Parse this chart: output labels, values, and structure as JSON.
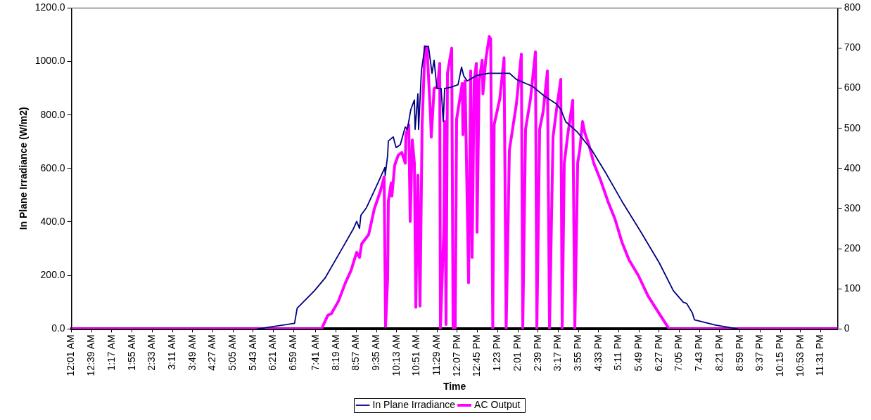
{
  "chart_data": {
    "type": "line",
    "xlabel": "Time",
    "ylabel": "In Plane Irradiance (W/m2)",
    "xlim": [
      0.017,
      24.05
    ],
    "xticks": [
      {
        "value": 0.017,
        "label": "12:01 AM"
      },
      {
        "value": 0.65,
        "label": "12:39 AM"
      },
      {
        "value": 1.283,
        "label": "1:17 AM"
      },
      {
        "value": 1.917,
        "label": "1:55 AM"
      },
      {
        "value": 2.55,
        "label": "2:33 AM"
      },
      {
        "value": 3.183,
        "label": "3:11 AM"
      },
      {
        "value": 3.817,
        "label": "3:49 AM"
      },
      {
        "value": 4.45,
        "label": "4:27 AM"
      },
      {
        "value": 5.083,
        "label": "5:05 AM"
      },
      {
        "value": 5.717,
        "label": "5:43 AM"
      },
      {
        "value": 6.35,
        "label": "6:21 AM"
      },
      {
        "value": 6.983,
        "label": "6:59 AM"
      },
      {
        "value": 7.683,
        "label": "7:41 AM"
      },
      {
        "value": 8.317,
        "label": "8:19 AM"
      },
      {
        "value": 8.95,
        "label": "8:57 AM"
      },
      {
        "value": 9.583,
        "label": "9:35 AM"
      },
      {
        "value": 10.217,
        "label": "10:13 AM"
      },
      {
        "value": 10.85,
        "label": "10:51 AM"
      },
      {
        "value": 11.483,
        "label": "11:29 AM"
      },
      {
        "value": 12.117,
        "label": "12:07 PM"
      },
      {
        "value": 12.75,
        "label": "12:45 PM"
      },
      {
        "value": 13.383,
        "label": "1:23 PM"
      },
      {
        "value": 14.017,
        "label": "2:01 PM"
      },
      {
        "value": 14.65,
        "label": "2:39 PM"
      },
      {
        "value": 15.283,
        "label": "3:17 PM"
      },
      {
        "value": 15.917,
        "label": "3:55 PM"
      },
      {
        "value": 16.55,
        "label": "4:33 PM"
      },
      {
        "value": 17.183,
        "label": "5:11 PM"
      },
      {
        "value": 17.817,
        "label": "5:49 PM"
      },
      {
        "value": 18.45,
        "label": "6:27 PM"
      },
      {
        "value": 19.083,
        "label": "7:05 PM"
      },
      {
        "value": 19.717,
        "label": "7:43 PM"
      },
      {
        "value": 20.35,
        "label": "8:21 PM"
      },
      {
        "value": 20.983,
        "label": "8:59 PM"
      },
      {
        "value": 21.617,
        "label": "9:37 PM"
      },
      {
        "value": 22.25,
        "label": "10:15 PM"
      },
      {
        "value": 22.883,
        "label": "10:53 PM"
      },
      {
        "value": 23.517,
        "label": "11:31 PM"
      }
    ],
    "ylim": [
      0,
      1200
    ],
    "yticks": [
      {
        "value": 0,
        "label": "0.0"
      },
      {
        "value": 200,
        "label": "200.0"
      },
      {
        "value": 400,
        "label": "400.0"
      },
      {
        "value": 600,
        "label": "600.0"
      },
      {
        "value": 800,
        "label": "800.0"
      },
      {
        "value": 1000,
        "label": "1000.0"
      },
      {
        "value": 1200,
        "label": "1200.0"
      }
    ],
    "y2lim": [
      0,
      800
    ],
    "y2ticks": [
      0,
      100,
      200,
      300,
      400,
      500,
      600,
      700,
      800
    ],
    "grid": false,
    "legend": "bottom",
    "marker": "none",
    "line_style": "solid",
    "series": [
      {
        "name": "In Plane Irradiance",
        "color": "#000080",
        "x": [
          5.843,
          7.013,
          7.095,
          7.639,
          7.97,
          8.455,
          8.853,
          8.963,
          9.051,
          9.095,
          9.272,
          9.625,
          9.846,
          9.857,
          9.934,
          9.956,
          10.11,
          10.198,
          10.331,
          10.486,
          10.552,
          10.662,
          10.773,
          10.795,
          10.883,
          10.905,
          10.993,
          11.104,
          11.214,
          11.325,
          11.391,
          11.479,
          11.611,
          11.678,
          11.722,
          11.921,
          12.142,
          12.252,
          12.318,
          12.429,
          12.716,
          13.091,
          13.753,
          13.973,
          14.481,
          14.856,
          15.231,
          15.364,
          15.518,
          15.894,
          16.335,
          16.776,
          17.284,
          17.88,
          18.454,
          18.895,
          19.204,
          19.314,
          19.491,
          19.557,
          19.712,
          20.219,
          20.771,
          20.926
        ],
        "values": [
          0,
          21,
          77,
          143,
          190,
          290,
          373,
          402,
          376,
          425,
          454,
          545,
          603,
          574,
          649,
          703,
          718,
          678,
          689,
          755,
          746,
          821,
          856,
          746,
          879,
          746,
          965,
          1057,
          1057,
          956,
          1005,
          899,
          899,
          775,
          899,
          904,
          913,
          979,
          947,
          927,
          947,
          956,
          956,
          933,
          907,
          870,
          841,
          821,
          775,
          735,
          669,
          583,
          477,
          362,
          247,
          143,
          100,
          95,
          60,
          34,
          29,
          14,
          3,
          0
        ]
      },
      {
        "name": "AC Output",
        "color": "#ff00ff",
        "axis": "y2",
        "x": [
          0.017,
          7.86,
          8.058,
          8.169,
          8.389,
          8.61,
          8.787,
          8.963,
          9.051,
          9.118,
          9.338,
          9.515,
          9.713,
          9.824,
          9.868,
          9.934,
          9.956,
          10.045,
          10.067,
          10.155,
          10.265,
          10.376,
          10.486,
          10.508,
          10.597,
          10.641,
          10.707,
          10.773,
          10.817,
          10.883,
          10.949,
          11.015,
          11.104,
          11.17,
          11.28,
          11.302,
          11.391,
          11.501,
          11.567,
          11.589,
          11.7,
          11.722,
          11.766,
          11.81,
          11.943,
          11.987,
          12.053,
          12.097,
          12.274,
          12.296,
          12.362,
          12.473,
          12.539,
          12.583,
          12.649,
          12.716,
          12.738,
          12.803,
          12.9,
          12.922,
          13.01,
          13.121,
          13.165,
          13.231,
          13.275,
          13.452,
          13.585,
          13.651,
          13.753,
          13.973,
          14.128,
          14.172,
          14.26,
          14.415,
          14.57,
          14.614,
          14.702,
          14.812,
          14.945,
          15.011,
          15.121,
          15.231,
          15.364,
          15.408,
          15.474,
          15.584,
          15.739,
          15.805,
          15.894,
          15.96,
          16.048,
          16.114,
          16.247,
          16.401,
          16.622,
          16.843,
          17.064,
          17.284,
          17.505,
          17.792,
          18.101,
          18.454,
          18.763,
          24.05
        ],
        "values": [
          0,
          0,
          34,
          38,
          69,
          115,
          146,
          191,
          178,
          212,
          235,
          299,
          345,
          379,
          6,
          126,
          318,
          364,
          331,
          408,
          433,
          440,
          413,
          484,
          509,
          268,
          471,
          413,
          54,
          383,
          57,
          509,
          704,
          700,
          528,
          478,
          599,
          605,
          662,
          0,
          255,
          517,
          11,
          637,
          700,
          0,
          0,
          523,
          612,
          484,
          618,
          115,
          643,
          178,
          618,
          662,
          241,
          618,
          670,
          586,
          670,
          729,
          723,
          0,
          509,
          574,
          676,
          0,
          446,
          561,
          685,
          0,
          498,
          574,
          691,
          0,
          498,
          542,
          643,
          0,
          478,
          547,
          622,
          0,
          413,
          484,
          570,
          0,
          413,
          446,
          517,
          490,
          459,
          413,
          369,
          318,
          274,
          216,
          172,
          134,
          82,
          38,
          0,
          0
        ]
      }
    ]
  }
}
